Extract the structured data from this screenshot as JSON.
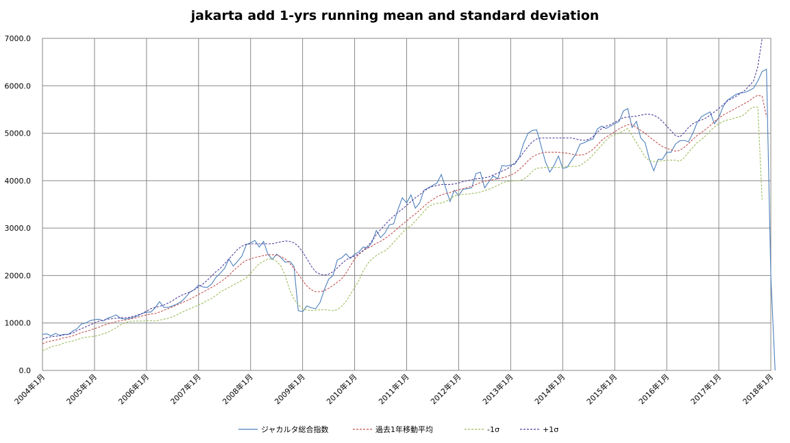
{
  "chart_data": {
    "type": "line",
    "title": "jakarta add 1-yrs running mean and standard deviation",
    "xlabel": "",
    "ylabel": "",
    "ylim": [
      0,
      7000
    ],
    "yticks": [
      "0.0",
      "1000.0",
      "2000.0",
      "3000.0",
      "4000.0",
      "5000.0",
      "6000.0",
      "7000.0"
    ],
    "xticks": [
      "2004年1月",
      "2005年1月",
      "2006年1月",
      "2007年1月",
      "2008年1月",
      "2009年1月",
      "2010年1月",
      "2011年1月",
      "2012年1月",
      "2013年1月",
      "2014年1月",
      "2015年1月",
      "2016年1月",
      "2017年1月",
      "2018年1月"
    ],
    "x_start_year": 2004,
    "x_months_total": 168,
    "grid": true,
    "legend_position": "bottom",
    "series": [
      {
        "name": "ジャカルタ総合指数",
        "color": "#4a7ebb",
        "style": "solid",
        "values": [
          760,
          770,
          730,
          780,
          740,
          760,
          760,
          830,
          880,
          980,
          1000,
          1050,
          1070,
          1080,
          1040,
          1100,
          1130,
          1170,
          1100,
          1080,
          1100,
          1120,
          1150,
          1200,
          1230,
          1230,
          1320,
          1450,
          1330,
          1330,
          1360,
          1400,
          1450,
          1540,
          1650,
          1700,
          1800,
          1760,
          1750,
          1820,
          1960,
          2050,
          2150,
          2350,
          2200,
          2300,
          2410,
          2650,
          2690,
          2740,
          2600,
          2720,
          2450,
          2340,
          2450,
          2380,
          2280,
          2300,
          2200,
          1260,
          1240,
          1360,
          1320,
          1300,
          1430,
          1700,
          1920,
          2000,
          2330,
          2370,
          2460,
          2360,
          2450,
          2500,
          2600,
          2580,
          2700,
          2950,
          2800,
          2900,
          3070,
          3090,
          3390,
          3640,
          3530,
          3700,
          3420,
          3530,
          3800,
          3850,
          3900,
          3950,
          4130,
          3850,
          3560,
          3800,
          3680,
          3820,
          3830,
          3850,
          4150,
          4180,
          3850,
          3980,
          4100,
          4040,
          4320,
          4310,
          4330,
          4350,
          4500,
          4790,
          5000,
          5060,
          5070,
          4740,
          4400,
          4180,
          4320,
          4520,
          4260,
          4280,
          4420,
          4560,
          4770,
          4800,
          4850,
          4880,
          5090,
          5150,
          5100,
          5150,
          5200,
          5250,
          5470,
          5520,
          5120,
          5250,
          4900,
          4800,
          4450,
          4210,
          4450,
          4450,
          4600,
          4600,
          4770,
          4840,
          4850,
          4820,
          5000,
          5220,
          5350,
          5400,
          5450,
          5200,
          5330,
          5560,
          5700,
          5760,
          5820,
          5850,
          5860,
          5900,
          5950,
          6100,
          6300,
          6350,
          2000,
          0
        ]
      },
      {
        "name": "過去1年移動平均",
        "color": "#c0504d",
        "style": "dashed",
        "values": [
          560,
          600,
          620,
          640,
          660,
          690,
          700,
          730,
          760,
          800,
          820,
          850,
          880,
          910,
          950,
          980,
          1000,
          1030,
          1050,
          1060,
          1080,
          1100,
          1120,
          1150,
          1170,
          1190,
          1200,
          1230,
          1270,
          1300,
          1340,
          1380,
          1420,
          1460,
          1500,
          1550,
          1600,
          1650,
          1700,
          1750,
          1800,
          1860,
          1930,
          2000,
          2100,
          2180,
          2260,
          2320,
          2350,
          2380,
          2400,
          2420,
          2440,
          2440,
          2430,
          2400,
          2350,
          2260,
          2150,
          2030,
          1900,
          1780,
          1700,
          1660,
          1660,
          1680,
          1730,
          1790,
          1860,
          1930,
          2050,
          2200,
          2350,
          2450,
          2520,
          2580,
          2620,
          2680,
          2720,
          2780,
          2850,
          2920,
          3000,
          3080,
          3150,
          3230,
          3300,
          3380,
          3460,
          3540,
          3600,
          3660,
          3700,
          3730,
          3750,
          3780,
          3810,
          3830,
          3860,
          3880,
          3920,
          3960,
          3990,
          4010,
          4020,
          4040,
          4060,
          4080,
          4120,
          4160,
          4240,
          4320,
          4420,
          4500,
          4550,
          4580,
          4600,
          4600,
          4600,
          4600,
          4590,
          4580,
          4560,
          4540,
          4540,
          4550,
          4600,
          4660,
          4750,
          4850,
          4920,
          4970,
          5030,
          5090,
          5140,
          5180,
          5180,
          5120,
          5060,
          5000,
          4920,
          4850,
          4780,
          4720,
          4680,
          4650,
          4620,
          4640,
          4700,
          4780,
          4870,
          4950,
          5020,
          5080,
          5160,
          5250,
          5320,
          5380,
          5430,
          5480,
          5530,
          5580,
          5630,
          5680,
          5750,
          5800,
          5780,
          5350
        ]
      },
      {
        "name": "-1σ",
        "color": "#9bbb59",
        "style": "dashed",
        "values": [
          420,
          450,
          500,
          520,
          540,
          580,
          600,
          620,
          650,
          680,
          700,
          710,
          720,
          740,
          770,
          800,
          850,
          900,
          960,
          1000,
          1030,
          1040,
          1040,
          1040,
          1050,
          1050,
          1040,
          1060,
          1080,
          1100,
          1130,
          1170,
          1220,
          1260,
          1300,
          1340,
          1380,
          1420,
          1470,
          1520,
          1580,
          1650,
          1700,
          1750,
          1800,
          1850,
          1900,
          1950,
          2050,
          2150,
          2250,
          2300,
          2350,
          2350,
          2300,
          2200,
          2000,
          1700,
          1500,
          1380,
          1300,
          1270,
          1260,
          1270,
          1280,
          1280,
          1270,
          1260,
          1280,
          1350,
          1450,
          1600,
          1750,
          1900,
          2100,
          2250,
          2350,
          2420,
          2480,
          2520,
          2600,
          2700,
          2800,
          2900,
          3000,
          3050,
          3150,
          3250,
          3350,
          3450,
          3500,
          3520,
          3530,
          3560,
          3610,
          3680,
          3700,
          3710,
          3720,
          3730,
          3740,
          3760,
          3790,
          3820,
          3860,
          3900,
          3950,
          3980,
          3990,
          4000,
          4000,
          4030,
          4100,
          4200,
          4260,
          4270,
          4280,
          4280,
          4280,
          4280,
          4290,
          4300,
          4300,
          4300,
          4320,
          4380,
          4450,
          4550,
          4650,
          4750,
          4850,
          4930,
          4970,
          5000,
          5050,
          5100,
          4950,
          4800,
          4650,
          4500,
          4420,
          4400,
          4410,
          4420,
          4430,
          4430,
          4430,
          4410,
          4480,
          4600,
          4700,
          4800,
          4870,
          4950,
          5050,
          5130,
          5200,
          5250,
          5280,
          5300,
          5330,
          5350,
          5400,
          5500,
          5550,
          5550,
          3600
        ]
      },
      {
        "name": "+1σ",
        "color": "#4f3b9d",
        "style": "dashed",
        "values": [
          660,
          690,
          710,
          720,
          730,
          750,
          760,
          790,
          840,
          880,
          920,
          960,
          1000,
          1040,
          1060,
          1080,
          1090,
          1100,
          1110,
          1110,
          1120,
          1140,
          1170,
          1200,
          1250,
          1300,
          1330,
          1350,
          1380,
          1420,
          1470,
          1530,
          1580,
          1620,
          1650,
          1700,
          1760,
          1820,
          1900,
          1990,
          2080,
          2150,
          2250,
          2350,
          2450,
          2550,
          2620,
          2660,
          2670,
          2670,
          2670,
          2670,
          2670,
          2670,
          2690,
          2710,
          2730,
          2720,
          2690,
          2620,
          2500,
          2350,
          2200,
          2080,
          2030,
          2010,
          2030,
          2080,
          2160,
          2250,
          2330,
          2380,
          2410,
          2460,
          2530,
          2620,
          2730,
          2860,
          2970,
          3070,
          3170,
          3250,
          3330,
          3400,
          3480,
          3560,
          3640,
          3700,
          3780,
          3840,
          3880,
          3900,
          3920,
          3920,
          3920,
          3930,
          3950,
          3980,
          4000,
          4020,
          4040,
          4050,
          4060,
          4080,
          4120,
          4160,
          4200,
          4240,
          4300,
          4380,
          4480,
          4600,
          4720,
          4820,
          4880,
          4900,
          4900,
          4900,
          4900,
          4900,
          4900,
          4900,
          4900,
          4880,
          4860,
          4850,
          4870,
          4930,
          5020,
          5100,
          5150,
          5180,
          5230,
          5280,
          5330,
          5340,
          5350,
          5360,
          5380,
          5400,
          5400,
          5380,
          5330,
          5250,
          5150,
          5050,
          4950,
          4920,
          5010,
          5120,
          5200,
          5250,
          5280,
          5320,
          5380,
          5450,
          5520,
          5600,
          5680,
          5730,
          5780,
          5840,
          5900,
          6000,
          6100,
          6400,
          7000
        ]
      }
    ]
  }
}
